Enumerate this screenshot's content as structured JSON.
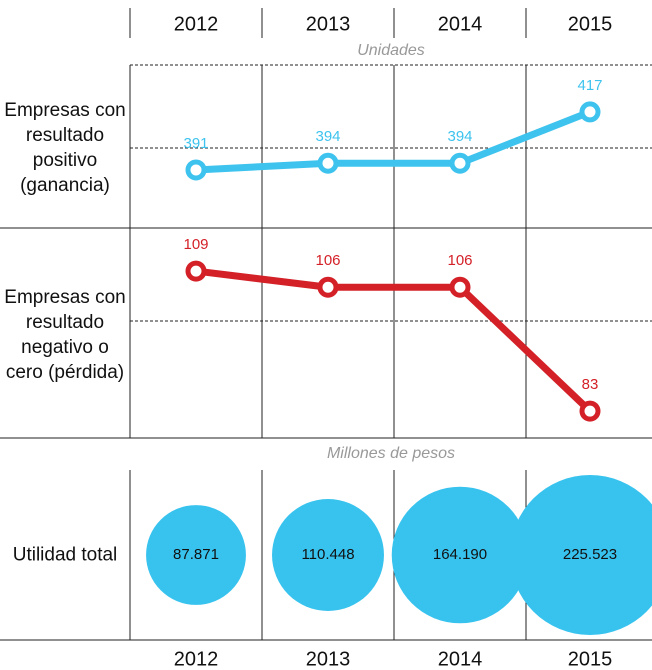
{
  "chart_data": [
    {
      "type": "line",
      "subtitle": "Unidades",
      "categories": [
        "2012",
        "2013",
        "2014",
        "2015"
      ],
      "ylim": [
        365,
        438
      ],
      "series": [
        {
          "name": "Empresas con resultado positivo (ganancia)",
          "color": "#3ec3ee",
          "values": [
            391,
            394,
            394,
            417
          ]
        }
      ]
    },
    {
      "type": "line",
      "ylim": [
        78,
        117
      ],
      "series": [
        {
          "name": "Empresas con resultado negativo o cero (pérdida)",
          "color": "#d42027",
          "values": [
            109,
            106,
            106,
            83
          ]
        }
      ]
    },
    {
      "type": "bubble",
      "subtitle": "Millones de pesos",
      "series": [
        {
          "name": "Utilidad total",
          "color": "#38c3ef",
          "values": [
            87871,
            110448,
            164190,
            225523
          ],
          "value_labels": [
            "87.871",
            "110.448",
            "164.190",
            "225.523"
          ]
        }
      ]
    }
  ]
}
